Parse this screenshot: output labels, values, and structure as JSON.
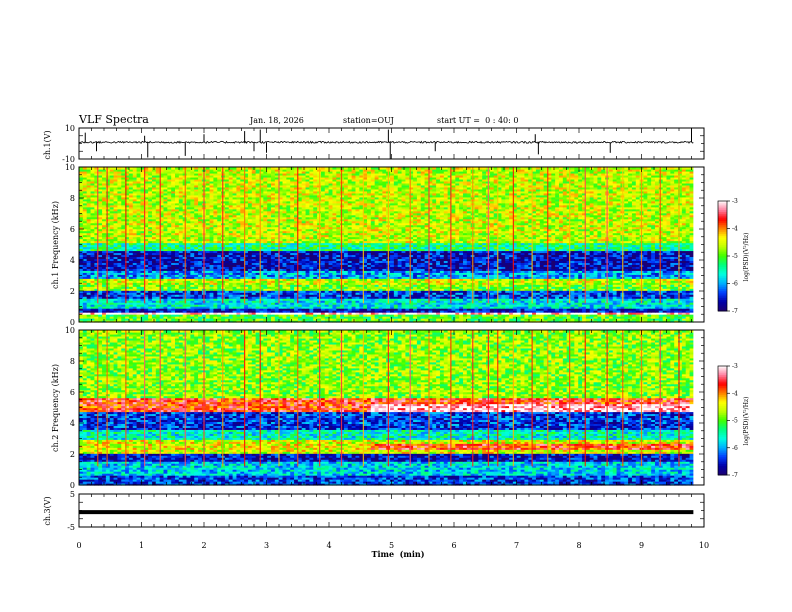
{
  "header": {
    "title": "VLF Spectra",
    "date": "Jan. 18, 2026",
    "station": "station=OUJ",
    "start_ut": "start UT =  0 : 40: 0"
  },
  "chart_data": [
    {
      "type": "line",
      "panel": "ch1-waveform",
      "ylabel": "ch.1(V)",
      "ylim": [
        -10,
        10
      ],
      "y_ticks": [
        "10",
        "-10"
      ],
      "x_range": [
        0,
        9.83
      ],
      "baseline": 0.8,
      "noise_amplitude": 0.6,
      "spikes": [
        {
          "t": 0.1,
          "v": 7
        },
        {
          "t": 0.28,
          "v": -5
        },
        {
          "t": 1.05,
          "v": 5
        },
        {
          "t": 1.1,
          "v": -9
        },
        {
          "t": 1.7,
          "v": -8
        },
        {
          "t": 2.0,
          "v": 6
        },
        {
          "t": 2.65,
          "v": 8
        },
        {
          "t": 2.8,
          "v": -5
        },
        {
          "t": 2.9,
          "v": 9
        },
        {
          "t": 3.0,
          "v": -6
        },
        {
          "t": 4.95,
          "v": 9
        },
        {
          "t": 4.98,
          "v": -10
        },
        {
          "t": 5.7,
          "v": -5
        },
        {
          "t": 7.3,
          "v": 6
        },
        {
          "t": 7.35,
          "v": -7
        },
        {
          "t": 8.5,
          "v": -6
        },
        {
          "t": 9.8,
          "v": 10
        }
      ]
    },
    {
      "type": "heatmap",
      "panel": "ch1-spectrogram",
      "ylabel": "ch.1 Frequency (kHz)",
      "ylim": [
        0,
        10
      ],
      "y_ticks": [
        0,
        2,
        4,
        6,
        8,
        10
      ],
      "x_range": [
        0,
        9.83
      ],
      "bands": [
        {
          "f1": 0.0,
          "f2": 0.5,
          "level": -5.0
        },
        {
          "f1": 0.5,
          "f2": 0.6,
          "level": -3.0
        },
        {
          "f1": 0.6,
          "f2": 0.85,
          "level": -6.6
        },
        {
          "f1": 0.85,
          "f2": 1.5,
          "level": -5.7
        },
        {
          "f1": 1.5,
          "f2": 2.1,
          "level": -6.4
        },
        {
          "f1": 2.1,
          "f2": 2.5,
          "level": -4.9
        },
        {
          "f1": 2.5,
          "f2": 2.8,
          "level": -4.6
        },
        {
          "f1": 2.8,
          "f2": 3.3,
          "level": -6.0
        },
        {
          "f1": 3.3,
          "f2": 4.6,
          "level": -6.6
        },
        {
          "f1": 4.6,
          "f2": 5.1,
          "level": -5.4
        },
        {
          "f1": 5.1,
          "f2": 10.0,
          "level": -4.6
        }
      ],
      "spherics_times": [
        0.3,
        0.45,
        0.75,
        1.05,
        1.3,
        1.7,
        2.0,
        2.3,
        2.65,
        2.9,
        3.2,
        3.5,
        3.85,
        4.2,
        4.55,
        4.95,
        5.3,
        5.6,
        5.95,
        6.3,
        6.55,
        6.7,
        6.95,
        7.25,
        7.5,
        7.85,
        8.1,
        8.45,
        8.7,
        9.0,
        9.3,
        9.6
      ]
    },
    {
      "type": "heatmap",
      "panel": "ch2-spectrogram",
      "ylabel": "ch.2 Frequency (kHz)",
      "ylim": [
        0,
        10
      ],
      "y_ticks": [
        0,
        2,
        4,
        6,
        8,
        10
      ],
      "x_range": [
        0,
        9.83
      ],
      "bands": [
        {
          "f1": 0.0,
          "f2": 0.6,
          "level": -6.4
        },
        {
          "f1": 0.6,
          "f2": 1.6,
          "level": -5.8
        },
        {
          "f1": 1.6,
          "f2": 2.1,
          "level": -6.6
        },
        {
          "f1": 2.1,
          "f2": 2.9,
          "level": -4.5
        },
        {
          "f1": 2.9,
          "f2": 3.6,
          "level": -5.6
        },
        {
          "f1": 3.6,
          "f2": 4.7,
          "level": -6.4
        },
        {
          "f1": 4.7,
          "f2": 5.6,
          "level": -3.7
        },
        {
          "f1": 5.6,
          "f2": 10.0,
          "level": -4.8
        }
      ],
      "enhanced_bands": [
        {
          "t1": 4.65,
          "t2": 9.83,
          "f1": 4.7,
          "f2": 5.3,
          "level": -3.1
        },
        {
          "t1": 4.65,
          "t2": 9.83,
          "f1": 2.3,
          "f2": 2.7,
          "level": -3.7
        }
      ],
      "spherics_times": [
        0.3,
        0.45,
        0.75,
        1.05,
        1.3,
        1.7,
        2.0,
        2.3,
        2.65,
        2.9,
        3.2,
        3.5,
        3.85,
        4.2,
        4.55,
        4.95,
        5.3,
        5.6,
        5.95,
        6.3,
        6.55,
        6.7,
        6.95,
        7.25,
        7.5,
        7.85,
        8.1,
        8.45,
        8.7,
        9.0,
        9.3,
        9.6
      ]
    },
    {
      "type": "line",
      "panel": "ch3-waveform",
      "ylabel": "ch.3(V)",
      "ylim": [
        -5,
        5
      ],
      "y_ticks": [
        "5",
        "-5"
      ],
      "x_range": [
        0,
        9.83
      ],
      "value": -0.5,
      "xlabel": "Time  (min)",
      "x_ticks": [
        0,
        1,
        2,
        3,
        4,
        5,
        6,
        7,
        8,
        9,
        10
      ],
      "xlim": [
        0,
        10
      ]
    }
  ],
  "colorbars": [
    {
      "label": "log(PSD)(V²/Hz)",
      "range": [
        -7,
        -3
      ],
      "ticks": [
        "-3",
        "-4",
        "-5",
        "-6",
        "-7"
      ]
    },
    {
      "label": "log(PSD)(V²/Hz)",
      "range": [
        -7,
        -3
      ],
      "ticks": [
        "-3",
        "-4",
        "-5",
        "-6",
        "-7"
      ]
    }
  ],
  "colors": {
    "colormap": [
      "#1c0070",
      "#0000a8",
      "#0040ff",
      "#00b0ff",
      "#00ffe0",
      "#00ff80",
      "#40ff00",
      "#c0ff00",
      "#ffff00",
      "#ff8000",
      "#ff0000",
      "#ff80a0",
      "#ffffff"
    ]
  }
}
